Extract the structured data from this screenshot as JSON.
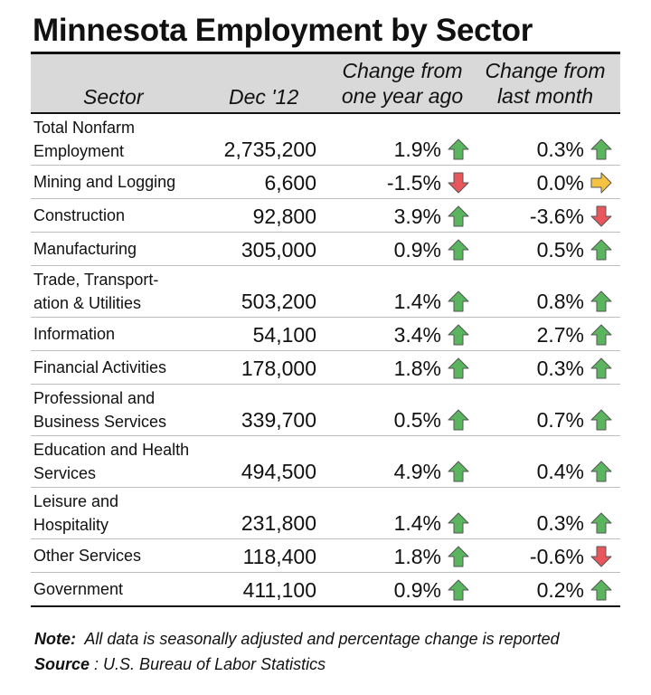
{
  "title": "Minnesota Employment by Sector",
  "headers": {
    "sector": "Sector",
    "dec": "Dec '12",
    "year_line1": "Change from",
    "year_line2": "one year ago",
    "month_line1": "Change from",
    "month_line2": "last month"
  },
  "rows": [
    {
      "line1": "Total Nonfarm",
      "line2": "Employment",
      "employment": "2,735,200",
      "year_change": "1.9%",
      "year_dir": "up",
      "month_change": "0.3%",
      "month_dir": "up"
    },
    {
      "line1": "Mining and Logging",
      "line2": "",
      "employment": "6,600",
      "year_change": "-1.5%",
      "year_dir": "down",
      "month_change": "0.0%",
      "month_dir": "flat"
    },
    {
      "line1": "Construction",
      "line2": "",
      "employment": "92,800",
      "year_change": "3.9%",
      "year_dir": "up",
      "month_change": "-3.6%",
      "month_dir": "down"
    },
    {
      "line1": "Manufacturing",
      "line2": "",
      "employment": "305,000",
      "year_change": "0.9%",
      "year_dir": "up",
      "month_change": "0.5%",
      "month_dir": "up"
    },
    {
      "line1": "Trade, Transport-",
      "line2": "ation & Utilities",
      "employment": "503,200",
      "year_change": "1.4%",
      "year_dir": "up",
      "month_change": "0.8%",
      "month_dir": "up"
    },
    {
      "line1": "Information",
      "line2": "",
      "employment": "54,100",
      "year_change": "3.4%",
      "year_dir": "up",
      "month_change": "2.7%",
      "month_dir": "up"
    },
    {
      "line1": "Financial Activities",
      "line2": "",
      "employment": "178,000",
      "year_change": "1.8%",
      "year_dir": "up",
      "month_change": "0.3%",
      "month_dir": "up"
    },
    {
      "line1": "Professional and",
      "line2": "Business Services",
      "employment": "339,700",
      "year_change": "0.5%",
      "year_dir": "up",
      "month_change": "0.7%",
      "month_dir": "up"
    },
    {
      "line1": "Education and Health",
      "line2": "Services",
      "employment": "494,500",
      "year_change": "4.9%",
      "year_dir": "up",
      "month_change": "0.4%",
      "month_dir": "up"
    },
    {
      "line1": "Leisure and",
      "line2": "Hospitality",
      "employment": "231,800",
      "year_change": "1.4%",
      "year_dir": "up",
      "month_change": "0.3%",
      "month_dir": "up"
    },
    {
      "line1": "Other Services",
      "line2": "",
      "employment": "118,400",
      "year_change": "1.8%",
      "year_dir": "up",
      "month_change": "-0.6%",
      "month_dir": "down"
    },
    {
      "line1": "Government",
      "line2": "",
      "employment": "411,100",
      "year_change": "0.9%",
      "year_dir": "up",
      "month_change": "0.2%",
      "month_dir": "up"
    }
  ],
  "colors": {
    "up": "#5bb55e",
    "down": "#e8575b",
    "flat": "#f5c242",
    "header_bg": "#d9d9d9"
  },
  "note": {
    "note_label": "Note:",
    "note_text": "All data is seasonally adjusted and percentage change is reported",
    "source_label": "Source",
    "source_text": ": U.S. Bureau of Labor Statistics"
  }
}
